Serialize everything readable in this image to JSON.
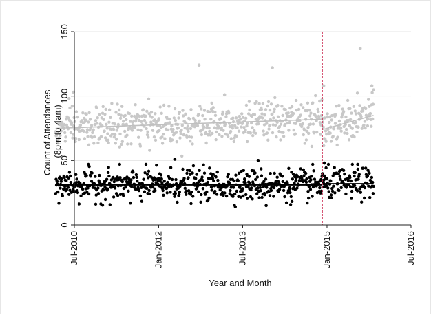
{
  "chart_data": {
    "type": "scatter",
    "title": "",
    "xlabel": "Year and Month",
    "ylabel_lines": [
      "Count of Attendances",
      "(8pm to 4am)"
    ],
    "xlim": [
      "2010-07-01",
      "2016-07-01"
    ],
    "ylim": [
      0,
      150
    ],
    "y_ticks": [
      0,
      50,
      100,
      150
    ],
    "x_ticks": [
      {
        "date": "2010-07-01",
        "label": "Jul-2010"
      },
      {
        "date": "2012-01-01",
        "label": "Jan-2012"
      },
      {
        "date": "2013-07-01",
        "label": "Jul-2013"
      },
      {
        "date": "2015-01-01",
        "label": "Jan-2015"
      },
      {
        "date": "2016-07-01",
        "label": "Jul-2016"
      }
    ],
    "grid": true,
    "legend": "none",
    "date_range": [
      "2010-03-01",
      "2015-10-31"
    ],
    "intervention_date": "2014-12-01",
    "colors": {
      "upper": "#c8c8c8",
      "lower": "#000000",
      "upper_fit": "#c0c0c0",
      "lower_fit": "#000000",
      "intervention": "#c8234a",
      "grid": "#e4e4e4",
      "axis": "#222222"
    },
    "series": [
      {
        "points_summary": "daily counts, grey",
        "fit_segments": [
          {
            "from": "2010-03-01",
            "to": "2014-11-30",
            "y_start": 75,
            "y_end": 82
          },
          {
            "from": "2014-12-01",
            "to": "2015-10-31",
            "y_start": 74,
            "y_end": 85
          }
        ],
        "mean": 79,
        "sd": 9,
        "highlights": [
          {
            "date": "2012-09-20",
            "value": 124
          },
          {
            "date": "2014-01-10",
            "value": 122
          },
          {
            "date": "2015-08-05",
            "value": 137
          },
          {
            "date": "2015-10-20",
            "value": 108
          },
          {
            "date": "2014-12-10",
            "value": 108
          },
          {
            "date": "2010-06-25",
            "value": 103
          },
          {
            "date": "2013-03-05",
            "value": 101
          }
        ]
      },
      {
        "points_summary": "daily counts, black",
        "fit_segments": [
          {
            "from": "2010-03-01",
            "to": "2014-11-30",
            "y_start": 31,
            "y_end": 31
          },
          {
            "from": "2014-12-01",
            "to": "2015-10-31",
            "y_start": 32,
            "y_end": 32
          }
        ],
        "mean": 31,
        "sd": 7,
        "highlights": [
          {
            "date": "2012-04-15",
            "value": 51
          },
          {
            "date": "2013-10-10",
            "value": 50
          },
          {
            "date": "2014-12-15",
            "value": 48
          },
          {
            "date": "2015-07-20",
            "value": 47
          },
          {
            "date": "2013-12-01",
            "value": 15
          },
          {
            "date": "2011-07-01",
            "value": 17
          }
        ]
      }
    ]
  }
}
